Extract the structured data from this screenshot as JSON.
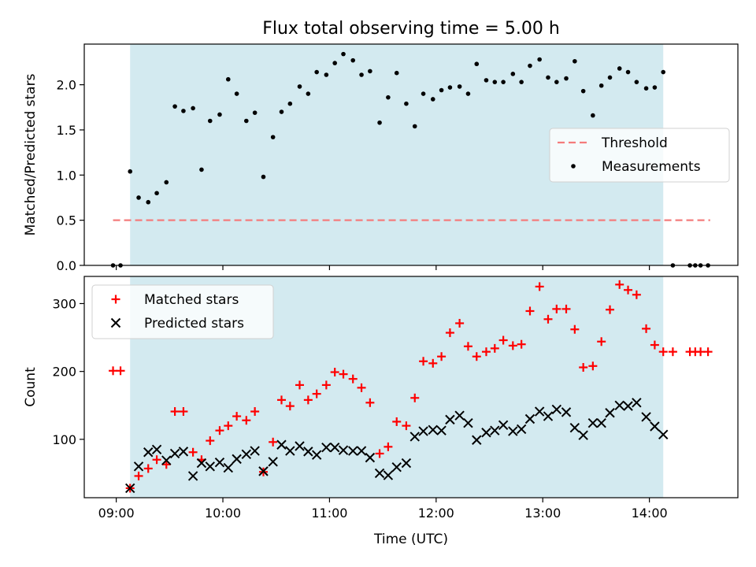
{
  "title": "Flux total observing time = 5.00 h",
  "xlabel": "Time (UTC)",
  "xticks": [
    {
      "t": 9.0,
      "label": "09:00"
    },
    {
      "t": 10.0,
      "label": "10:00"
    },
    {
      "t": 11.0,
      "label": "11:00"
    },
    {
      "t": 12.0,
      "label": "12:00"
    },
    {
      "t": 13.0,
      "label": "13:00"
    },
    {
      "t": 14.0,
      "label": "14:00"
    }
  ],
  "shade": {
    "start": 9.13,
    "end": 14.13,
    "color": "#d3eaf0"
  },
  "chart_data": [
    {
      "type": "scatter",
      "ylabel": "Matched/Predicted stars",
      "xlim": [
        8.7,
        14.83
      ],
      "ylim": [
        0,
        2.45
      ],
      "yticks": [
        {
          "v": 0.0,
          "label": "0.0"
        },
        {
          "v": 0.5,
          "label": "0.5"
        },
        {
          "v": 1.0,
          "label": "1.0"
        },
        {
          "v": 1.5,
          "label": "1.5"
        },
        {
          "v": 2.0,
          "label": "2.0"
        }
      ],
      "legend": {
        "position": "center-right",
        "items": [
          {
            "label": "Threshold",
            "style": "dashed-line",
            "color": "#f47c7c"
          },
          {
            "label": "Measurements",
            "style": "dot",
            "color": "#000000"
          }
        ]
      },
      "threshold": {
        "value": 0.5,
        "x_range": [
          8.97,
          14.57
        ],
        "color": "#f47c7c"
      },
      "series": [
        {
          "name": "Measurements",
          "color": "#000000",
          "points": [
            [
              8.97,
              0.0
            ],
            [
              9.04,
              0.0
            ],
            [
              9.13,
              1.04
            ],
            [
              9.21,
              0.75
            ],
            [
              9.3,
              0.7
            ],
            [
              9.38,
              0.8
            ],
            [
              9.47,
              0.92
            ],
            [
              9.55,
              1.76
            ],
            [
              9.63,
              1.71
            ],
            [
              9.72,
              1.74
            ],
            [
              9.8,
              1.06
            ],
            [
              9.88,
              1.6
            ],
            [
              9.97,
              1.67
            ],
            [
              10.05,
              2.06
            ],
            [
              10.13,
              1.9
            ],
            [
              10.22,
              1.6
            ],
            [
              10.3,
              1.69
            ],
            [
              10.38,
              0.98
            ],
            [
              10.47,
              1.42
            ],
            [
              10.55,
              1.7
            ],
            [
              10.63,
              1.79
            ],
            [
              10.72,
              1.98
            ],
            [
              10.8,
              1.9
            ],
            [
              10.88,
              2.14
            ],
            [
              10.97,
              2.11
            ],
            [
              11.05,
              2.24
            ],
            [
              11.13,
              2.34
            ],
            [
              11.22,
              2.27
            ],
            [
              11.3,
              2.11
            ],
            [
              11.38,
              2.15
            ],
            [
              11.47,
              1.58
            ],
            [
              11.55,
              1.86
            ],
            [
              11.63,
              2.13
            ],
            [
              11.72,
              1.79
            ],
            [
              11.8,
              1.54
            ],
            [
              11.88,
              1.9
            ],
            [
              11.97,
              1.84
            ],
            [
              12.05,
              1.94
            ],
            [
              12.13,
              1.97
            ],
            [
              12.22,
              1.98
            ],
            [
              12.3,
              1.9
            ],
            [
              12.38,
              2.23
            ],
            [
              12.47,
              2.05
            ],
            [
              12.55,
              2.03
            ],
            [
              12.63,
              2.03
            ],
            [
              12.72,
              2.12
            ],
            [
              12.8,
              2.03
            ],
            [
              12.88,
              2.21
            ],
            [
              12.97,
              2.28
            ],
            [
              13.05,
              2.08
            ],
            [
              13.13,
              2.03
            ],
            [
              13.22,
              2.07
            ],
            [
              13.3,
              2.26
            ],
            [
              13.38,
              1.93
            ],
            [
              13.47,
              1.66
            ],
            [
              13.55,
              1.99
            ],
            [
              13.63,
              2.08
            ],
            [
              13.72,
              2.18
            ],
            [
              13.8,
              2.14
            ],
            [
              13.88,
              2.03
            ],
            [
              13.97,
              1.96
            ],
            [
              14.05,
              1.97
            ],
            [
              14.13,
              2.14
            ],
            [
              14.22,
              0.0
            ],
            [
              14.38,
              0.0
            ],
            [
              14.43,
              0.0
            ],
            [
              14.48,
              0.0
            ],
            [
              14.55,
              0.0
            ]
          ]
        }
      ]
    },
    {
      "type": "scatter",
      "ylabel": "Count",
      "xlim": [
        8.7,
        14.83
      ],
      "ylim": [
        14,
        340
      ],
      "yticks": [
        {
          "v": 100,
          "label": "100"
        },
        {
          "v": 200,
          "label": "200"
        },
        {
          "v": 300,
          "label": "300"
        }
      ],
      "legend": {
        "position": "top-left",
        "items": [
          {
            "label": "Matched stars",
            "style": "plus",
            "color": "#ff0000"
          },
          {
            "label": "Predicted stars",
            "style": "x",
            "color": "#000000"
          }
        ]
      },
      "series": [
        {
          "name": "Matched stars",
          "marker": "plus",
          "color": "#ff0000",
          "points": [
            [
              8.97,
              201
            ],
            [
              9.04,
              201
            ],
            [
              9.13,
              28
            ],
            [
              9.21,
              46
            ],
            [
              9.3,
              57
            ],
            [
              9.38,
              70
            ],
            [
              9.47,
              63
            ],
            [
              9.55,
              141
            ],
            [
              9.63,
              141
            ],
            [
              9.72,
              81
            ],
            [
              9.8,
              70
            ],
            [
              9.88,
              98
            ],
            [
              9.97,
              113
            ],
            [
              10.05,
              120
            ],
            [
              10.13,
              134
            ],
            [
              10.22,
              128
            ],
            [
              10.3,
              141
            ],
            [
              10.38,
              52
            ],
            [
              10.47,
              96
            ],
            [
              10.55,
              158
            ],
            [
              10.63,
              149
            ],
            [
              10.72,
              180
            ],
            [
              10.8,
              158
            ],
            [
              10.88,
              167
            ],
            [
              10.97,
              180
            ],
            [
              11.05,
              199
            ],
            [
              11.13,
              196
            ],
            [
              11.22,
              189
            ],
            [
              11.3,
              176
            ],
            [
              11.38,
              154
            ],
            [
              11.47,
              79
            ],
            [
              11.55,
              89
            ],
            [
              11.63,
              126
            ],
            [
              11.72,
              120
            ],
            [
              11.8,
              161
            ],
            [
              11.88,
              215
            ],
            [
              11.97,
              212
            ],
            [
              12.05,
              222
            ],
            [
              12.13,
              257
            ],
            [
              12.22,
              271
            ],
            [
              12.3,
              237
            ],
            [
              12.38,
              222
            ],
            [
              12.47,
              229
            ],
            [
              12.55,
              234
            ],
            [
              12.63,
              246
            ],
            [
              12.72,
              238
            ],
            [
              12.8,
              240
            ],
            [
              12.88,
              289
            ],
            [
              12.97,
              325
            ],
            [
              13.05,
              277
            ],
            [
              13.13,
              292
            ],
            [
              13.22,
              292
            ],
            [
              13.3,
              262
            ],
            [
              13.38,
              206
            ],
            [
              13.47,
              208
            ],
            [
              13.55,
              244
            ],
            [
              13.63,
              291
            ],
            [
              13.72,
              328
            ],
            [
              13.8,
              320
            ],
            [
              13.88,
              313
            ],
            [
              13.97,
              263
            ],
            [
              14.05,
              239
            ],
            [
              14.13,
              229
            ],
            [
              14.22,
              229
            ],
            [
              14.38,
              229
            ],
            [
              14.43,
              229
            ],
            [
              14.48,
              229
            ],
            [
              14.55,
              229
            ]
          ]
        },
        {
          "name": "Predicted stars",
          "marker": "x",
          "color": "#000000",
          "points": [
            [
              9.13,
              28
            ],
            [
              9.21,
              60
            ],
            [
              9.3,
              81
            ],
            [
              9.38,
              85
            ],
            [
              9.47,
              69
            ],
            [
              9.55,
              79
            ],
            [
              9.63,
              82
            ],
            [
              9.72,
              46
            ],
            [
              9.8,
              65
            ],
            [
              9.88,
              60
            ],
            [
              9.97,
              66
            ],
            [
              10.05,
              58
            ],
            [
              10.13,
              71
            ],
            [
              10.22,
              78
            ],
            [
              10.3,
              83
            ],
            [
              10.38,
              53
            ],
            [
              10.47,
              67
            ],
            [
              10.55,
              92
            ],
            [
              10.63,
              83
            ],
            [
              10.72,
              90
            ],
            [
              10.8,
              82
            ],
            [
              10.88,
              77
            ],
            [
              10.97,
              88
            ],
            [
              11.05,
              88
            ],
            [
              11.13,
              84
            ],
            [
              11.22,
              83
            ],
            [
              11.3,
              83
            ],
            [
              11.38,
              73
            ],
            [
              11.47,
              50
            ],
            [
              11.55,
              47
            ],
            [
              11.63,
              59
            ],
            [
              11.72,
              65
            ],
            [
              11.8,
              104
            ],
            [
              11.88,
              112
            ],
            [
              11.97,
              114
            ],
            [
              12.05,
              113
            ],
            [
              12.13,
              129
            ],
            [
              12.22,
              135
            ],
            [
              12.3,
              124
            ],
            [
              12.38,
              99
            ],
            [
              12.47,
              110
            ],
            [
              12.55,
              113
            ],
            [
              12.63,
              121
            ],
            [
              12.72,
              112
            ],
            [
              12.8,
              115
            ],
            [
              12.88,
              130
            ],
            [
              12.97,
              141
            ],
            [
              13.05,
              134
            ],
            [
              13.13,
              144
            ],
            [
              13.22,
              140
            ],
            [
              13.3,
              117
            ],
            [
              13.38,
              106
            ],
            [
              13.47,
              124
            ],
            [
              13.55,
              124
            ],
            [
              13.63,
              139
            ],
            [
              13.72,
              150
            ],
            [
              13.8,
              149
            ],
            [
              13.88,
              154
            ],
            [
              13.97,
              133
            ],
            [
              14.05,
              119
            ],
            [
              14.13,
              107
            ]
          ]
        }
      ]
    }
  ]
}
